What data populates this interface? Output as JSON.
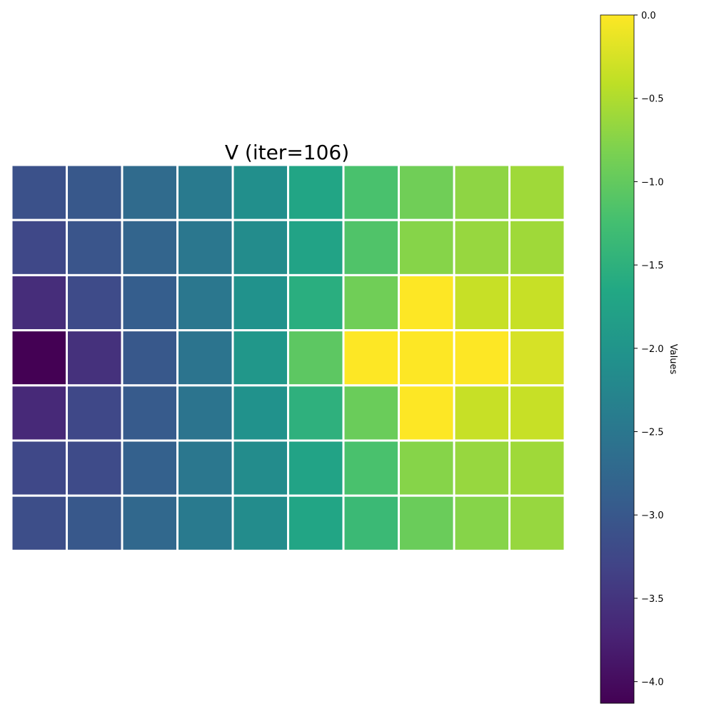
{
  "chart_data": {
    "type": "heatmap",
    "title": "V (iter=106)",
    "colorbar_label": "Values",
    "colormap": "viridis",
    "vmin": -4.13,
    "vmax": 0.0,
    "colorbar_ticks": [
      0.0,
      -0.5,
      -1.0,
      -1.5,
      -2.0,
      -2.5,
      -3.0,
      -3.5,
      -4.0
    ],
    "colorbar_tick_labels": [
      "0.0",
      "−0.5",
      "−1.0",
      "−1.5",
      "−2.0",
      "−2.5",
      "−3.0",
      "−3.5",
      "−4.0"
    ],
    "rows": 7,
    "cols": 10,
    "grid_line_color": "#ffffff",
    "values": [
      [
        -3.1,
        -3.0,
        -2.7,
        -2.45,
        -2.1,
        -1.7,
        -1.2,
        -0.9,
        -0.7,
        -0.6
      ],
      [
        -3.25,
        -3.05,
        -2.8,
        -2.5,
        -2.15,
        -1.75,
        -1.15,
        -0.75,
        -0.65,
        -0.6
      ],
      [
        -3.6,
        -3.2,
        -2.9,
        -2.5,
        -2.05,
        -1.55,
        -0.9,
        0.0,
        -0.35,
        -0.35
      ],
      [
        -4.13,
        -3.55,
        -3.0,
        -2.55,
        -1.95,
        -1.05,
        0.0,
        0.0,
        0.0,
        -0.25
      ],
      [
        -3.65,
        -3.25,
        -2.95,
        -2.55,
        -2.05,
        -1.5,
        -0.95,
        0.0,
        -0.35,
        -0.35
      ],
      [
        -3.25,
        -3.2,
        -2.85,
        -2.5,
        -2.15,
        -1.75,
        -1.2,
        -0.75,
        -0.65,
        -0.6
      ],
      [
        -3.15,
        -3.0,
        -2.75,
        -2.45,
        -2.15,
        -1.7,
        -1.35,
        -0.95,
        -0.75,
        -0.65
      ]
    ]
  }
}
